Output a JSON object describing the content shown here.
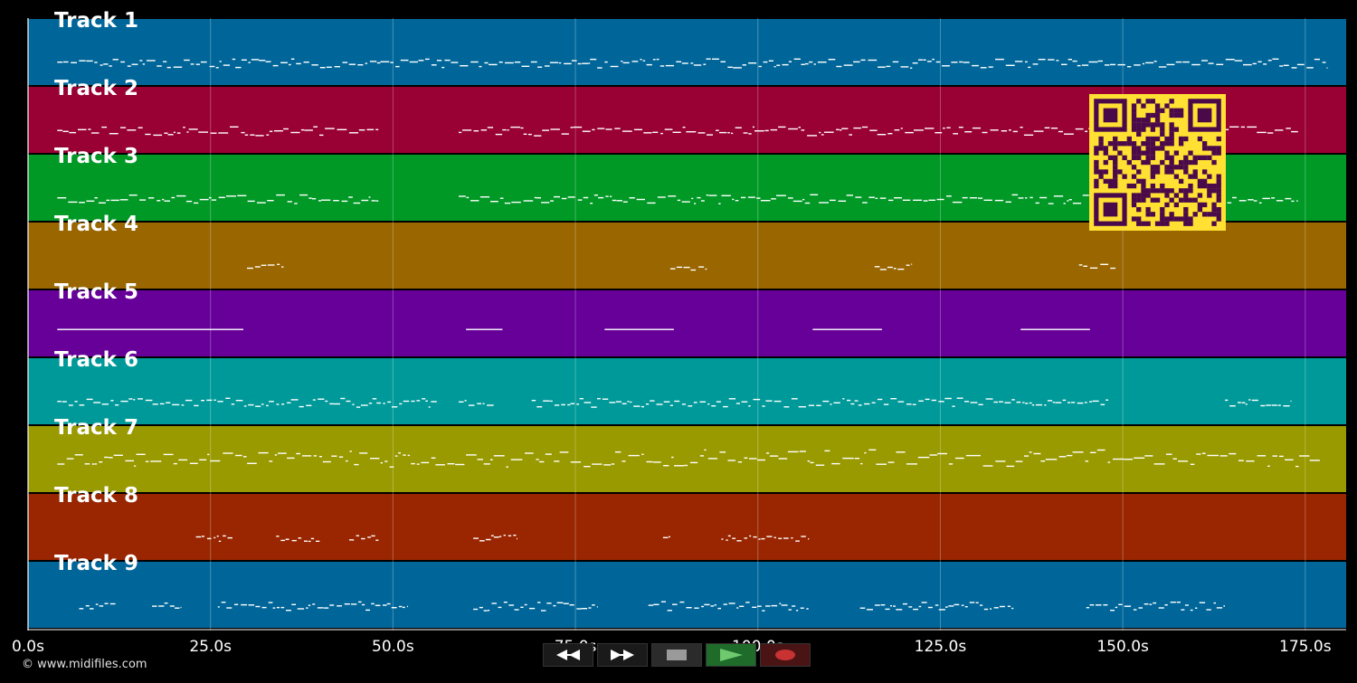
{
  "app": {
    "copyright": "© www.midifiles.com"
  },
  "tracks": [
    {
      "label": "Track 1",
      "color": "#006699"
    },
    {
      "label": "Track 2",
      "color": "#990033"
    },
    {
      "label": "Track 3",
      "color": "#009926"
    },
    {
      "label": "Track 4",
      "color": "#996600"
    },
    {
      "label": "Track 5",
      "color": "#660099"
    },
    {
      "label": "Track 6",
      "color": "#009999"
    },
    {
      "label": "Track 7",
      "color": "#999900"
    },
    {
      "label": "Track 8",
      "color": "#992600"
    },
    {
      "label": "Track 9",
      "color": "#006699"
    }
  ],
  "timeline": {
    "ticks": [
      "0.0s",
      "25.0s",
      "50.0s",
      "75.0s",
      "100.0s",
      "125.0s",
      "150.0s",
      "175.0s"
    ],
    "tick_values": [
      0,
      25,
      50,
      75,
      100,
      125,
      150,
      175
    ],
    "max_seconds": 180.6
  },
  "transport": {
    "buttons": [
      {
        "name": "rewind-button",
        "icon": "rewind-icon",
        "bg": "#1a1a1a"
      },
      {
        "name": "fast-forward-button",
        "icon": "fast-forward-icon",
        "bg": "#1a1a1a"
      },
      {
        "name": "stop-button",
        "icon": "stop-icon",
        "bg": "#2b2b2b"
      },
      {
        "name": "play-button",
        "icon": "play-icon",
        "bg": "#1f6b2a"
      },
      {
        "name": "record-button",
        "icon": "record-icon",
        "bg": "#4a1414"
      }
    ]
  },
  "overlay": {
    "qr_icon": "qr-code-icon",
    "qr_fg": "#4a0a4a",
    "qr_bg": "#ffe033"
  }
}
